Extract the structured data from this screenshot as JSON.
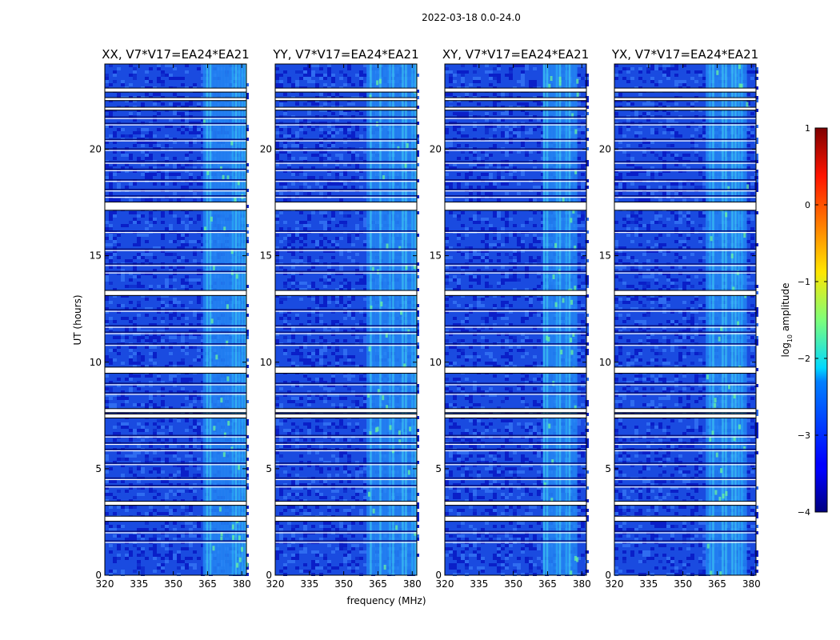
{
  "figure": {
    "suptitle": "2022-03-18 0.0-24.0",
    "xlabel": "frequency (MHz)",
    "ylabel": "UT (hours)"
  },
  "chart_data": {
    "type": "heatmap",
    "title": "2022-03-18 0.0-24.0",
    "xlabel": "frequency (MHz)",
    "ylabel": "UT (hours)",
    "xlim": [
      320,
      382
    ],
    "ylim": [
      0,
      24
    ],
    "xticks": [
      320,
      335,
      350,
      365,
      380
    ],
    "yticks": [
      0,
      5,
      10,
      15,
      20
    ],
    "panels": [
      {
        "title": "XX, V7*V17=EA24*EA21",
        "rfi_band_mhz": [
          363,
          382
        ],
        "show_ylabel": true
      },
      {
        "title": "YY, V7*V17=EA24*EA21",
        "rfi_band_mhz": [
          360,
          382
        ],
        "show_ylabel": false
      },
      {
        "title": "XY, V7*V17=EA24*EA21",
        "rfi_band_mhz": [
          363,
          378
        ],
        "show_ylabel": false
      },
      {
        "title": "YX, V7*V17=EA24*EA21",
        "rfi_band_mhz": [
          360,
          378
        ],
        "show_ylabel": false
      }
    ],
    "flagged_hours": [
      [
        2.55,
        2.75
      ],
      [
        3.3,
        3.45
      ],
      [
        7.4,
        7.55
      ],
      [
        7.65,
        7.8
      ],
      [
        9.5,
        9.75
      ],
      [
        13.15,
        13.35
      ],
      [
        17.15,
        17.5
      ],
      [
        21.85,
        21.95
      ],
      [
        22.3,
        22.4
      ],
      [
        22.7,
        22.85
      ]
    ],
    "thin_gap_hours": [
      1.6,
      2.05,
      4.2,
      4.55,
      5.25,
      5.9,
      6.2,
      6.55,
      8.55,
      9.0,
      10.85,
      11.4,
      11.7,
      12.45,
      14.25,
      14.6,
      15.3,
      16.15,
      17.8,
      18.1,
      18.55,
      19.05,
      19.4,
      20.0,
      20.45,
      21.2,
      21.5
    ],
    "colorbar": {
      "label": "log10 amplitude",
      "label_main": "log",
      "label_sub": "10",
      "label_tail": " amplitude",
      "range": [
        -4,
        1
      ],
      "ticks": [
        "1",
        "0",
        "−1",
        "−2",
        "−3",
        "−4"
      ],
      "colormap": "jet"
    }
  }
}
